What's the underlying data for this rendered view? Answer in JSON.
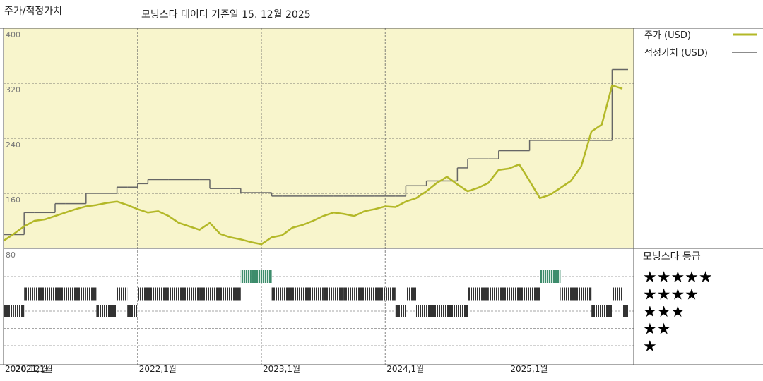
{
  "chart_data": {
    "type": "line",
    "title": "주가/적정가치",
    "subtitle": "모닝스타 데이터 기준일 15. 12월 2025",
    "x": [
      "2020-12",
      "2021-01",
      "2021-02",
      "2021-03",
      "2021-04",
      "2021-05",
      "2021-06",
      "2021-07",
      "2021-08",
      "2021-09",
      "2021-10",
      "2021-11",
      "2021-12",
      "2022-01",
      "2022-02",
      "2022-03",
      "2022-04",
      "2022-05",
      "2022-06",
      "2022-07",
      "2022-08",
      "2022-09",
      "2022-10",
      "2022-11",
      "2022-12",
      "2023-01",
      "2023-02",
      "2023-03",
      "2023-04",
      "2023-05",
      "2023-06",
      "2023-07",
      "2023-08",
      "2023-09",
      "2023-10",
      "2023-11",
      "2023-12",
      "2024-01",
      "2024-02",
      "2024-03",
      "2024-04",
      "2024-05",
      "2024-06",
      "2024-07",
      "2024-08",
      "2024-09",
      "2024-10",
      "2024-11",
      "2024-12",
      "2025-01",
      "2025-02",
      "2025-03",
      "2025-04",
      "2025-05",
      "2025-06",
      "2025-07",
      "2025-08",
      "2025-09",
      "2025-10",
      "2025-11",
      "2025-12"
    ],
    "xticks": [
      {
        "value": "2020-12",
        "label": "2020,12월"
      },
      {
        "value": "2021-01",
        "label": "2021,1월"
      },
      {
        "value": "2022-01",
        "label": "2022,1월"
      },
      {
        "value": "2023-01",
        "label": "2023,1월"
      },
      {
        "value": "2024-01",
        "label": "2024,1월"
      },
      {
        "value": "2025-01",
        "label": "2025,1월"
      }
    ],
    "ylim": [
      80,
      400
    ],
    "yticks": [
      80,
      160,
      240,
      320,
      400
    ],
    "series": [
      {
        "name": "주가 (USD)",
        "color": "#b3b828",
        "style": "line",
        "values": [
          91,
          101,
          112,
          120,
          122,
          127,
          132,
          137,
          141,
          143,
          146,
          148,
          143,
          137,
          132,
          134,
          127,
          117,
          112,
          107,
          117,
          101,
          96,
          93,
          89,
          86,
          96,
          99,
          110,
          114,
          120,
          127,
          132,
          130,
          127,
          134,
          137,
          141,
          140,
          148,
          153,
          163,
          175,
          184,
          173,
          163,
          168,
          175,
          194,
          196,
          202,
          178,
          153,
          158,
          168,
          178,
          199,
          250,
          260,
          317,
          312
        ]
      },
      {
        "name": "적정가치 (USD)",
        "color": "#666666",
        "style": "step",
        "values": [
          100,
          100,
          132,
          132,
          132,
          145,
          145,
          145,
          160,
          160,
          160,
          169,
          169,
          174,
          180,
          180,
          180,
          180,
          180,
          180,
          167,
          167,
          167,
          161,
          161,
          161,
          156,
          156,
          156,
          156,
          156,
          156,
          156,
          156,
          156,
          156,
          156,
          156,
          156,
          171,
          171,
          178,
          178,
          178,
          197,
          210,
          210,
          210,
          222,
          222,
          222,
          237,
          237,
          237,
          237,
          237,
          237,
          237,
          237,
          340,
          340
        ]
      }
    ],
    "rating": {
      "title": "모닝스타 등급",
      "levels": [
        {
          "value": 5,
          "label": "★★★★★"
        },
        {
          "value": 4,
          "label": "★★★★"
        },
        {
          "value": 3,
          "label": "★★★"
        },
        {
          "value": 2,
          "label": "★★"
        },
        {
          "value": 1,
          "label": "★"
        }
      ],
      "highlight_value": 5,
      "values": [
        3,
        3,
        4,
        4,
        4,
        4,
        4,
        4,
        4,
        3,
        3,
        4,
        3,
        4,
        4,
        4,
        4,
        4,
        4,
        4,
        4,
        4,
        4,
        5,
        5,
        5,
        4,
        4,
        4,
        4,
        4,
        4,
        4,
        4,
        4,
        4,
        4,
        4,
        3,
        4,
        3,
        3,
        3,
        3,
        3,
        4,
        4,
        4,
        4,
        4,
        4,
        4,
        5,
        5,
        4,
        4,
        4,
        3,
        3,
        4,
        3
      ]
    }
  }
}
